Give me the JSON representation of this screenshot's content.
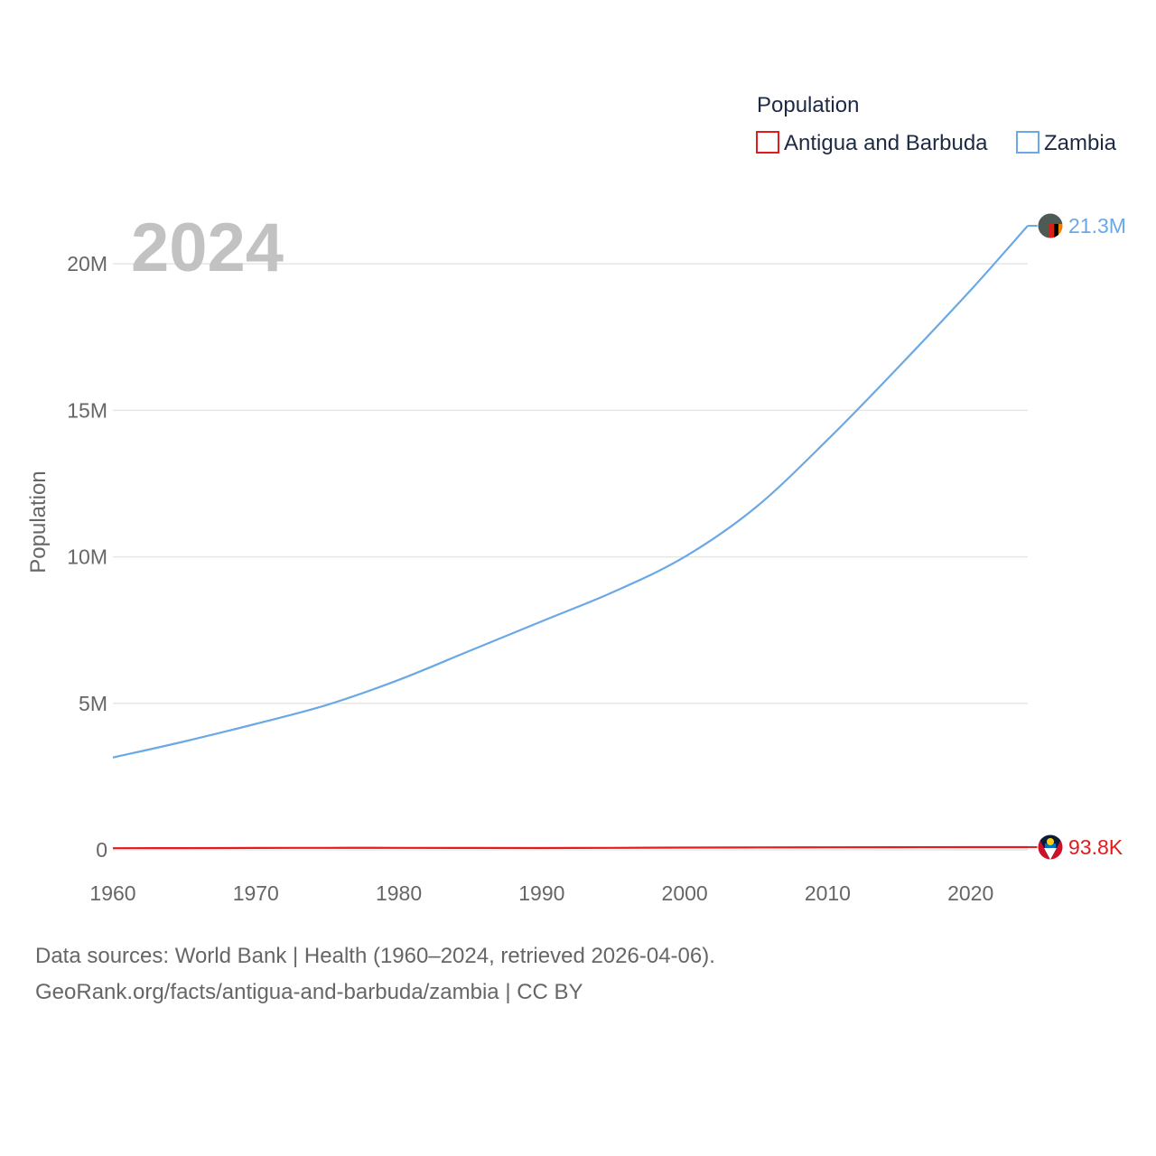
{
  "chart_data": {
    "type": "line",
    "year_label": "2024",
    "legend_title": "Population",
    "ylabel": "Population",
    "xlabel": "",
    "x_ticks": [
      "1960",
      "1970",
      "1980",
      "1990",
      "2000",
      "2010",
      "2020"
    ],
    "y_ticks": [
      {
        "value": 0,
        "label": "0"
      },
      {
        "value": 5000000,
        "label": "5M"
      },
      {
        "value": 10000000,
        "label": "10M"
      },
      {
        "value": 15000000,
        "label": "15M"
      },
      {
        "value": 20000000,
        "label": "20M"
      }
    ],
    "xlim": [
      1960,
      2024
    ],
    "ylim": [
      0,
      21300000
    ],
    "grid": true,
    "legend_position": "top-right",
    "x": [
      1960,
      1965,
      1970,
      1975,
      1980,
      1985,
      1990,
      1995,
      2000,
      2005,
      2010,
      2015,
      2020,
      2024
    ],
    "series": [
      {
        "name": "Antigua and Barbuda",
        "color": "#e41a1c",
        "end_label": "93.8K",
        "flag_icon": "antigua-and-barbuda-flag-icon",
        "values": [
          54000,
          59000,
          65000,
          68000,
          69000,
          65000,
          63000,
          69000,
          76000,
          82000,
          86000,
          89000,
          92000,
          93800
        ]
      },
      {
        "name": "Zambia",
        "color": "#6aa8e6",
        "end_label": "21.3M",
        "flag_icon": "zambia-flag-icon",
        "values": [
          3150000,
          3700000,
          4300000,
          4950000,
          5800000,
          6800000,
          7800000,
          8800000,
          10000000,
          11700000,
          14000000,
          16500000,
          19100000,
          21300000
        ]
      }
    ]
  },
  "source": {
    "line1": "Data sources: World Bank | Health (1960–2024, retrieved 2026-04-06).",
    "line2": "GeoRank.org/facts/antigua-and-barbuda/zambia | CC BY"
  }
}
